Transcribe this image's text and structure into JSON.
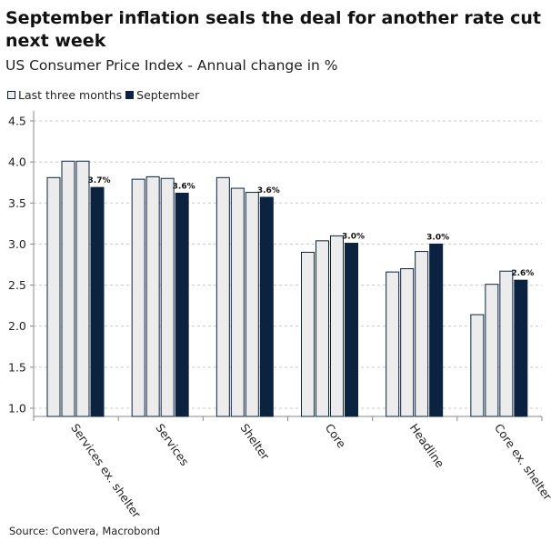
{
  "title": "September inflation seals the deal for another rate cut next week",
  "subtitle": "US Consumer Price Index - Annual change in %",
  "source": "Source: Convera, Macrobond",
  "colors": {
    "light_bar": "#ececec",
    "dark_bar": "#0c2340",
    "grid": "#c8c8c8",
    "axis": "#888888"
  },
  "chart_data": {
    "type": "bar",
    "categories": [
      "Services ex. shelter",
      "Services",
      "Shelter",
      "Core",
      "Headline",
      "Core ex. shelter"
    ],
    "legend": [
      {
        "name": "Last three months",
        "style": "light"
      },
      {
        "name": "September",
        "style": "dark"
      }
    ],
    "legend_position": "top-left",
    "grid": true,
    "ylim": [
      0.9,
      4.6
    ],
    "yticks": [
      "1.0",
      "1.5",
      "2.0",
      "2.5",
      "3.0",
      "3.5",
      "4.0",
      "4.5"
    ],
    "series": [
      {
        "name": "Last three months",
        "style": "light",
        "values": [
          [
            3.81,
            4.01,
            4.01
          ],
          [
            3.79,
            3.82,
            3.8
          ],
          [
            3.81,
            3.68,
            3.63
          ],
          [
            2.9,
            3.04,
            3.1
          ],
          [
            2.66,
            2.7,
            2.91
          ],
          [
            2.14,
            2.51,
            2.67
          ]
        ]
      },
      {
        "name": "September",
        "style": "dark",
        "values": [
          3.69,
          3.62,
          3.57,
          3.01,
          3.0,
          2.56
        ],
        "labels": [
          "3.7%",
          "3.6%",
          "3.6%",
          "3.0%",
          "3.0%",
          "2.6%"
        ]
      }
    ]
  }
}
